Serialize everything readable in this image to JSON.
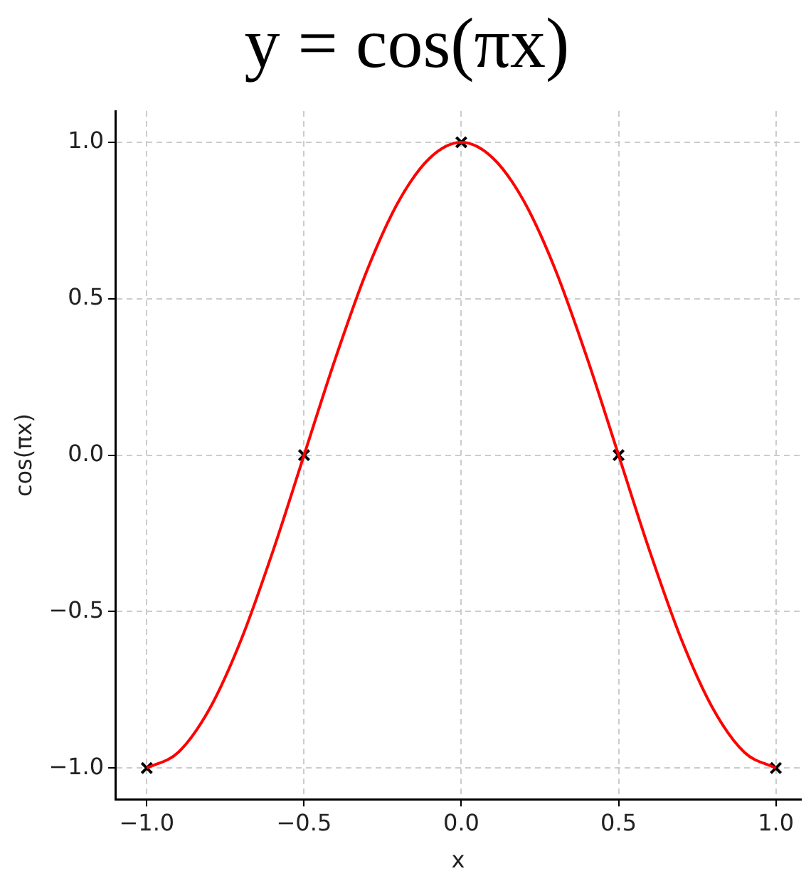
{
  "chart_data": {
    "type": "line",
    "title": "y = cos(πx)",
    "xlabel": "x",
    "ylabel": "cos(πx)",
    "xlim": [
      -1.1,
      1.08
    ],
    "ylim": [
      -1.1,
      1.1
    ],
    "xticks": [
      {
        "value": -1,
        "label": "−1.0"
      },
      {
        "value": -0.5,
        "label": "−0.5"
      },
      {
        "value": 0,
        "label": "0.0"
      },
      {
        "value": 0.5,
        "label": "0.5"
      },
      {
        "value": 1,
        "label": "1.0"
      }
    ],
    "yticks": [
      {
        "value": -1,
        "label": "−1.0"
      },
      {
        "value": -0.5,
        "label": "−0.5"
      },
      {
        "value": 0,
        "label": "0.0"
      },
      {
        "value": 0.5,
        "label": "0.5"
      },
      {
        "value": 1,
        "label": "1.0"
      }
    ],
    "grid": true,
    "series": [
      {
        "color": "#ff0000",
        "marker": "none",
        "line_style": "solid",
        "x": [
          -1,
          -0.9,
          -0.8,
          -0.7,
          -0.6,
          -0.5,
          -0.4,
          -0.3,
          -0.2,
          -0.1,
          0,
          0.1,
          0.2,
          0.3,
          0.4,
          0.5,
          0.6,
          0.7,
          0.8,
          0.9,
          1
        ],
        "values": [
          -1,
          -0.95,
          -0.81,
          -0.59,
          -0.31,
          0,
          0.31,
          0.59,
          0.81,
          0.95,
          1,
          0.95,
          0.81,
          0.59,
          0.31,
          0,
          -0.31,
          -0.59,
          -0.81,
          -0.95,
          -1
        ]
      },
      {
        "type": "scatter",
        "color": "#000000",
        "marker": "cross",
        "x": [
          -1,
          -0.5,
          0,
          0.5,
          1
        ],
        "values": [
          -1,
          0,
          1,
          0,
          -1
        ]
      }
    ]
  }
}
